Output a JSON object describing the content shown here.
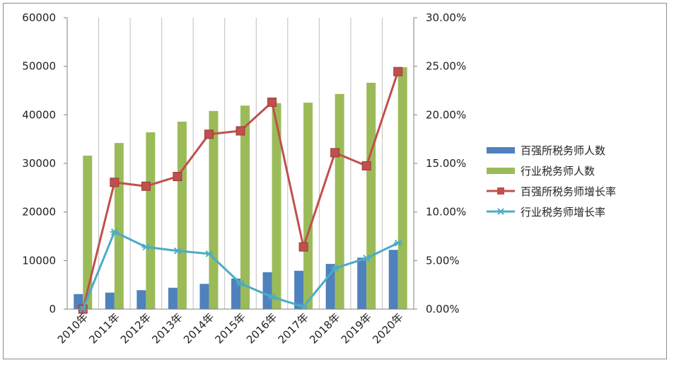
{
  "chart_data": {
    "type": "bar",
    "title": "",
    "categories": [
      "2010年",
      "2011年",
      "2012年",
      "2013年",
      "2014年",
      "2015年",
      "2016年",
      "2017年",
      "2018年",
      "2019年",
      "2020年"
    ],
    "y_left": {
      "min": 0,
      "max": 60000,
      "step": 10000,
      "tick_labels": [
        "0",
        "10000",
        "20000",
        "30000",
        "40000",
        "50000",
        "60000"
      ]
    },
    "y_right": {
      "min": 0,
      "max": 0.3,
      "step": 0.05,
      "tick_labels": [
        "0.00%",
        "5.00%",
        "10.00%",
        "15.00%",
        "20.00%",
        "25.00%",
        "30.00%"
      ]
    },
    "series": [
      {
        "name": "百强所税务师人数",
        "type": "bar",
        "axis": "left",
        "color": "#4f81bd",
        "values": [
          3100,
          3400,
          3900,
          4400,
          5200,
          6300,
          7600,
          7900,
          9300,
          10600,
          12200
        ]
      },
      {
        "name": "行业税务师人数",
        "type": "bar",
        "axis": "left",
        "color": "#9bbb59",
        "values": [
          31600,
          34200,
          36400,
          38600,
          40800,
          41900,
          42400,
          42500,
          44300,
          46600,
          49800
        ]
      },
      {
        "name": "百强所税务师增长率",
        "type": "line",
        "axis": "right",
        "color": "#c0504d",
        "marker": "square",
        "values": [
          0.0,
          0.1305,
          0.1265,
          0.1365,
          0.18,
          0.1835,
          0.213,
          0.064,
          0.161,
          0.1475,
          0.2445
        ]
      },
      {
        "name": "行业税务师增长率",
        "type": "line",
        "axis": "right",
        "color": "#4bacc6",
        "marker": "star",
        "values": [
          0.0,
          0.0795,
          0.064,
          0.06,
          0.057,
          0.0265,
          0.0125,
          0.0025,
          0.042,
          0.0525,
          0.068
        ]
      }
    ],
    "legend_position": "right",
    "grid": "vertical"
  }
}
